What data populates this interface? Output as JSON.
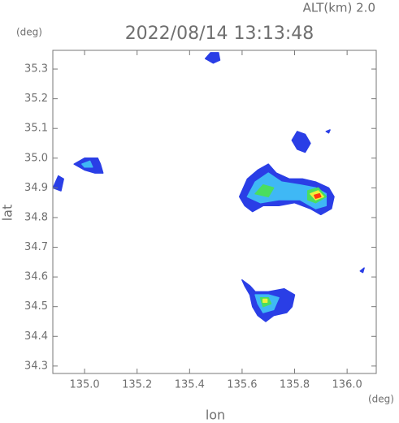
{
  "chart_data": {
    "type": "radar-echo",
    "altitude_label": "ALT(km)  2.0",
    "title": "2022/08/14 13:13:48",
    "y_unit": "(deg)",
    "x_unit": "(deg)",
    "ylabel": "lat",
    "xlabel": "lon",
    "xlim": [
      134.879,
      136.111
    ],
    "ylim": [
      34.275,
      35.363
    ],
    "xticks": [
      {
        "value": 135,
        "label": "135.0"
      },
      135.2,
      135.4,
      135.6,
      135.8,
      {
        "value": 136,
        "label": "136.0"
      }
    ],
    "yticks": [
      34.3,
      34.4,
      34.5,
      34.6,
      34.7,
      34.8,
      34.9,
      {
        "value": 35,
        "label": "35.0"
      },
      35.1,
      35.2,
      35.3
    ],
    "echoes": [
      {
        "color": "#2a3ee6",
        "x": [
          135.59,
          135.62,
          135.66,
          135.7,
          135.73,
          135.78,
          135.83,
          135.88,
          135.93,
          135.95,
          135.94,
          135.9,
          135.86,
          135.8,
          135.74,
          135.68,
          135.64,
          135.61
        ],
        "y": [
          34.87,
          34.93,
          34.96,
          34.98,
          34.95,
          34.93,
          34.93,
          34.92,
          34.9,
          34.87,
          34.83,
          34.81,
          34.83,
          34.85,
          34.84,
          34.84,
          34.82,
          34.84
        ]
      },
      {
        "color": "#3fb8f5",
        "x": [
          135.62,
          135.65,
          135.7,
          135.75,
          135.82,
          135.88,
          135.92,
          135.92,
          135.88,
          135.82,
          135.74,
          135.67
        ],
        "y": [
          34.87,
          34.92,
          34.95,
          34.92,
          34.91,
          34.9,
          34.88,
          34.84,
          34.83,
          34.86,
          34.86,
          34.85
        ]
      },
      {
        "color": "#4ade5e",
        "x": [
          135.65,
          135.68,
          135.72,
          135.7
        ],
        "y": [
          34.88,
          34.91,
          34.9,
          34.87
        ]
      },
      {
        "color": "#4ade5e",
        "x": [
          135.85,
          135.89,
          135.92,
          135.88,
          135.85
        ],
        "y": [
          34.89,
          34.9,
          34.87,
          34.85,
          34.86
        ]
      },
      {
        "color": "#eef03c",
        "x": [
          135.86,
          135.89,
          135.91,
          135.88
        ],
        "y": [
          34.88,
          34.89,
          34.87,
          34.86
        ]
      },
      {
        "color": "#ff3a10",
        "x": [
          135.875,
          135.895,
          135.9,
          135.88
        ],
        "y": [
          34.875,
          34.88,
          34.87,
          34.865
        ]
      },
      {
        "color": "#2a3ee6",
        "x": [
          135.6,
          135.63,
          135.65,
          135.7,
          135.76,
          135.8,
          135.79,
          135.77,
          135.72,
          135.69,
          135.66,
          135.64,
          135.63,
          135.61
        ],
        "y": [
          34.59,
          34.57,
          34.55,
          34.55,
          34.56,
          34.54,
          34.5,
          34.48,
          34.47,
          34.45,
          34.47,
          34.5,
          34.54,
          34.57
        ]
      },
      {
        "color": "#3fb8f5",
        "x": [
          135.65,
          135.7,
          135.74,
          135.72,
          135.68,
          135.66
        ],
        "y": [
          34.54,
          34.54,
          34.53,
          34.49,
          34.48,
          34.51
        ]
      },
      {
        "color": "#4ade5e",
        "x": [
          135.67,
          135.7,
          135.71,
          135.68
        ],
        "y": [
          34.53,
          34.53,
          34.51,
          34.5
        ]
      },
      {
        "color": "#eef03c",
        "x": [
          135.68,
          135.695,
          135.695,
          135.68
        ],
        "y": [
          34.525,
          34.525,
          34.515,
          34.515
        ]
      },
      {
        "color": "#2a3ee6",
        "x": [
          135.46,
          135.48,
          135.51,
          135.515,
          135.49
        ],
        "y": [
          35.335,
          35.355,
          35.355,
          35.33,
          35.32
        ]
      },
      {
        "color": "#2a3ee6",
        "x": [
          135.79,
          135.81,
          135.84,
          135.86,
          135.84,
          135.81
        ],
        "y": [
          35.06,
          35.09,
          35.08,
          35.05,
          35.02,
          35.03
        ]
      },
      {
        "color": "#2a3ee6",
        "x": [
          135.92,
          135.935,
          135.93
        ],
        "y": [
          35.09,
          35.095,
          35.085
        ]
      },
      {
        "color": "#2a3ee6",
        "x": [
          134.96,
          135.0,
          135.05,
          135.06,
          135.07,
          135.04,
          135.0
        ],
        "y": [
          34.98,
          35.0,
          35.0,
          34.98,
          34.95,
          34.95,
          34.96
        ]
      },
      {
        "color": "#3fb8f5",
        "x": [
          134.99,
          135.02,
          135.03,
          135.0
        ],
        "y": [
          34.98,
          34.99,
          34.97,
          34.97
        ]
      },
      {
        "color": "#2a3ee6",
        "x": [
          134.88,
          134.9,
          134.92,
          134.91
        ],
        "y": [
          34.9,
          34.94,
          34.93,
          34.89
        ]
      },
      {
        "color": "#2a3ee6",
        "x": [
          136.05,
          136.065,
          136.06
        ],
        "y": [
          34.62,
          34.63,
          34.615
        ]
      }
    ]
  }
}
